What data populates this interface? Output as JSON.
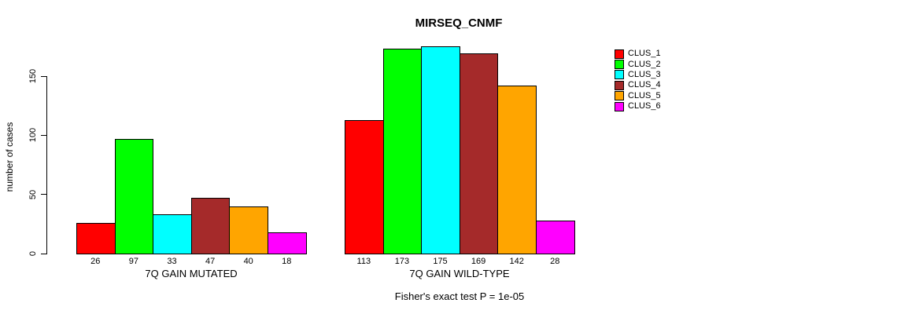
{
  "chart_data": {
    "type": "bar",
    "title": "MIRSEQ_CNMF",
    "ylabel": "number of cases",
    "ylim": [
      0,
      150
    ],
    "yticks": [
      0,
      50,
      100,
      150
    ],
    "grid": false,
    "legend_position": "top-right",
    "bar_border_color": "#000000",
    "series": [
      {
        "name": "CLUS_1",
        "color": "#FF0000"
      },
      {
        "name": "CLUS_2",
        "color": "#00FF00"
      },
      {
        "name": "CLUS_3",
        "color": "#00FFFF"
      },
      {
        "name": "CLUS_4",
        "color": "#A52A2A"
      },
      {
        "name": "CLUS_5",
        "color": "#FFA500"
      },
      {
        "name": "CLUS_6",
        "color": "#FF00FF"
      }
    ],
    "groups": [
      {
        "label": "7Q GAIN MUTATED",
        "values": [
          26,
          97,
          33,
          47,
          40,
          18
        ]
      },
      {
        "label": "7Q GAIN WILD-TYPE",
        "values": [
          113,
          173,
          175,
          169,
          142,
          28
        ]
      }
    ],
    "footer": "Fisher's exact test P = 1e-05"
  }
}
